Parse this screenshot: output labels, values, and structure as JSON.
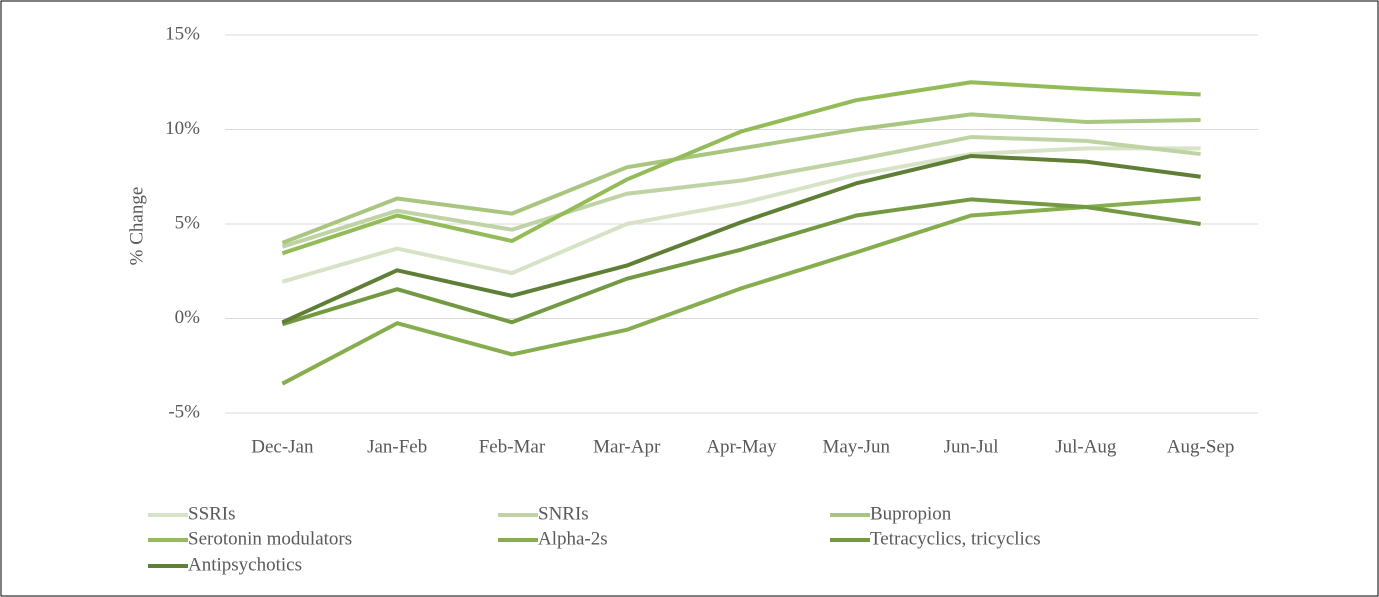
{
  "chart_data": {
    "type": "line",
    "y_label": "% Change",
    "categories": [
      "Dec-Jan",
      "Jan-Feb",
      "Feb-Mar",
      "Mar-Apr",
      "Apr-May",
      "May-Jun",
      "Jun-Jul",
      "Jul-Aug",
      "Aug-Sep"
    ],
    "series": [
      {
        "name": "SSRIs",
        "color": "#d6e3c6",
        "values": [
          1.95,
          3.7,
          2.4,
          5.0,
          6.1,
          7.6,
          8.7,
          9.0,
          9.0
        ]
      },
      {
        "name": "SNRIs",
        "color": "#bfd3a4",
        "values": [
          3.8,
          5.7,
          4.7,
          6.6,
          7.3,
          8.4,
          9.6,
          9.4,
          8.7
        ]
      },
      {
        "name": "Bupropion",
        "color": "#a8c67f",
        "values": [
          4.0,
          6.35,
          5.55,
          8.0,
          9.0,
          10.0,
          10.8,
          10.4,
          10.5
        ]
      },
      {
        "name": "Serotonin modulators",
        "color": "#93bb57",
        "values": [
          3.45,
          5.45,
          4.1,
          7.35,
          9.9,
          11.55,
          12.5,
          12.15,
          11.85
        ]
      },
      {
        "name": "Alpha-2s",
        "color": "#86ad4e",
        "values": [
          -3.45,
          -0.25,
          -1.9,
          -0.6,
          1.6,
          3.5,
          5.45,
          5.9,
          6.35
        ]
      },
      {
        "name": "Tetracyclics, tricyclics",
        "color": "#739a42",
        "values": [
          -0.3,
          1.55,
          -0.2,
          2.1,
          3.65,
          5.45,
          6.3,
          5.9,
          5.0
        ]
      },
      {
        "name": "Antipsychotics",
        "color": "#5e7f35",
        "values": [
          -0.2,
          2.55,
          1.2,
          2.8,
          5.1,
          7.15,
          8.6,
          8.3,
          7.5
        ]
      }
    ],
    "ylim": [
      -5,
      15
    ],
    "yticks": [
      {
        "value": -5,
        "label": "-5%"
      },
      {
        "value": 0,
        "label": "0%"
      },
      {
        "value": 5,
        "label": "5%"
      },
      {
        "value": 10,
        "label": "10%"
      },
      {
        "value": 15,
        "label": "15%"
      }
    ],
    "grid": true,
    "legend": "bottom"
  }
}
